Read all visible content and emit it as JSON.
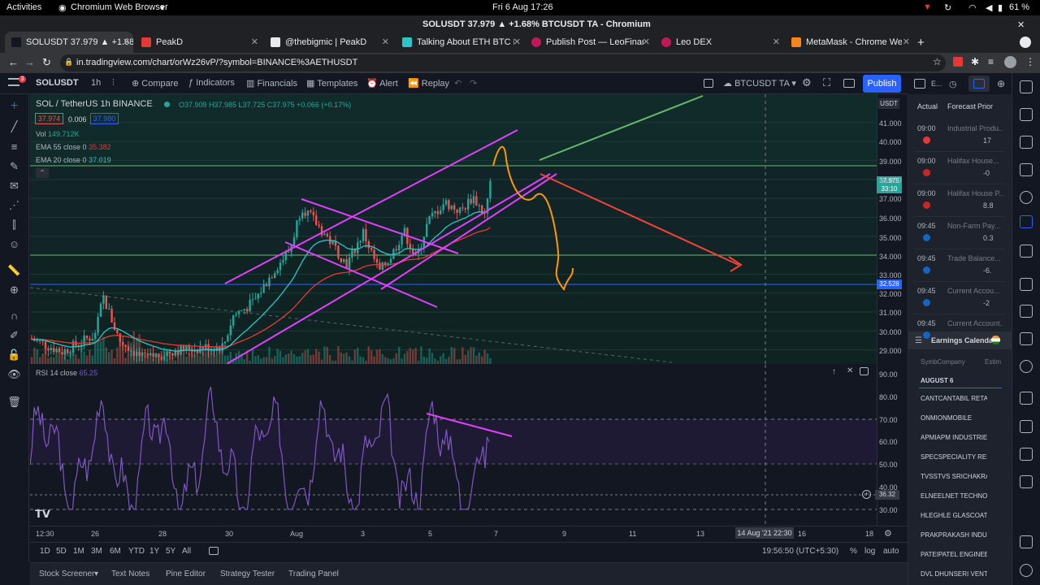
{
  "system_bar": {
    "activities": "Activities",
    "app": "Chromium Web Browser",
    "clock": "Fri 6 Aug  17:26",
    "battery": "61 %"
  },
  "window_title": "SOLUSDT 37.979 ▲ +1.68% BTCUSDT TA - Chromium",
  "tabs": [
    {
      "label": "SOLUSDT 37.979 ▲ +1.68%",
      "active": true
    },
    {
      "label": "PeakD",
      "active": false
    },
    {
      "label": "@thebigmic | PeakD",
      "active": false
    },
    {
      "label": "Talking About ETH BTC Lo",
      "active": false
    },
    {
      "label": "Publish Post — LeoFinanc",
      "active": false
    },
    {
      "label": "Leo DEX",
      "active": false
    },
    {
      "label": "MetaMask - Chrome Web",
      "active": false
    }
  ],
  "url": "in.tradingview.com/chart/orWz26vP/?symbol=BINANCE%3AETHUSDT",
  "header": {
    "symbol": "SOLUSDT",
    "interval": "1h",
    "compare": "Compare",
    "indicators": "Indicators",
    "financials": "Financials",
    "templates": "Templates",
    "alert": "Alert",
    "replay": "Replay",
    "layout_name": "BTCUSDT TA",
    "publish": "Publish"
  },
  "legend": {
    "title": "SOL / TetherUS  1h  BINANCE",
    "ohlc": "O37.909  H37.985  L37.725  C37.975  +0.066 (+0.17%)",
    "bid": "37.974",
    "spread": "0.006",
    "ask": "37.980",
    "vol_label": "Vol",
    "vol_value": "149.712K",
    "ema55_label": "EMA 55 close 0",
    "ema55_value": "35.382",
    "ema20_label": "EMA 20 close 0",
    "ema20_value": "37.019",
    "rsi_label": "RSI 14 close",
    "rsi_value": "65.25"
  },
  "price_axis": {
    "currency": "USDT",
    "labels": [
      "41.000",
      "40.000",
      "39.000",
      "38.000",
      "37.000",
      "36.000",
      "35.000",
      "34.000",
      "33.000",
      "32.000",
      "31.000",
      "30.000",
      "29.000"
    ],
    "last_price": "37.975",
    "countdown": "33:10",
    "line_marker": "32.528"
  },
  "rsi_axis": {
    "labels": [
      "90.00",
      "80.00",
      "70.00",
      "60.00",
      "50.00",
      "40.00",
      "30.00"
    ],
    "crosshair": "36.32"
  },
  "time_axis": {
    "labels": [
      "12:30",
      "26",
      "28",
      "30",
      "Aug",
      "3",
      "5",
      "7",
      "9",
      "11",
      "13",
      "16",
      "18"
    ],
    "crosshair": "14 Aug '21  22:30"
  },
  "range_bar": {
    "ranges": [
      "1D",
      "5D",
      "1M",
      "3M",
      "6M",
      "YTD",
      "1Y",
      "5Y",
      "All"
    ],
    "clock": "19:56:50 (UTC+5:30)",
    "pct": "%",
    "log": "log",
    "auto": "auto"
  },
  "bottom_tabs": [
    "Stock Screener",
    "Text Notes",
    "Pine Editor",
    "Strategy Tester",
    "Trading Panel"
  ],
  "calendar": {
    "tabs": [
      "E..."
    ],
    "columns": [
      "Actual",
      "Forecast",
      "Prior"
    ],
    "events": [
      {
        "time": "09:00",
        "name": "Industrial Produ...",
        "prior": "17"
      },
      {
        "time": "09:00",
        "name": "Halifax House...",
        "prior": "-0"
      },
      {
        "time": "09:00",
        "name": "Halifax House P...",
        "prior": "8.8"
      },
      {
        "time": "09:45",
        "name": "Non-Farm Pay...",
        "prior": "0.3"
      },
      {
        "time": "09:45",
        "name": "Trade Balance...",
        "prior": "-6."
      },
      {
        "time": "09:45",
        "name": "Current Accou...",
        "prior": "-2"
      },
      {
        "time": "09:45",
        "name": "Current Account...",
        "prior": ""
      }
    ],
    "earnings_title": "Earnings Calendar",
    "earnings_cols": [
      "SymbCompany",
      "Estim"
    ],
    "earnings_date": "AUGUST 6",
    "earnings": [
      "CANTCANTABIL RETAI",
      "ONMIONMOBILE",
      "APMIAPM INDUSTRIES",
      "SPECSPECIALITY RES",
      "TVSSTVS SRICHAKRA",
      "ELNEELNET TECHNOL",
      "HLEGHLE GLASCOAT L",
      "PRAKPRAKASH INDUS",
      "PATEIPATEL ENGINEEF",
      "DVL  DHUNSERI VENT"
    ]
  },
  "colors": {
    "up": "#26a69a",
    "down": "#ef5350",
    "ema20": "#2ec4c8",
    "ema55": "#e53935",
    "rsi": "#7e57c2",
    "channel": "#e040fb",
    "orange": "#ff9800",
    "red_arrow": "#f44336",
    "green_line": "#66bb6a",
    "accent": "#2962ff"
  }
}
